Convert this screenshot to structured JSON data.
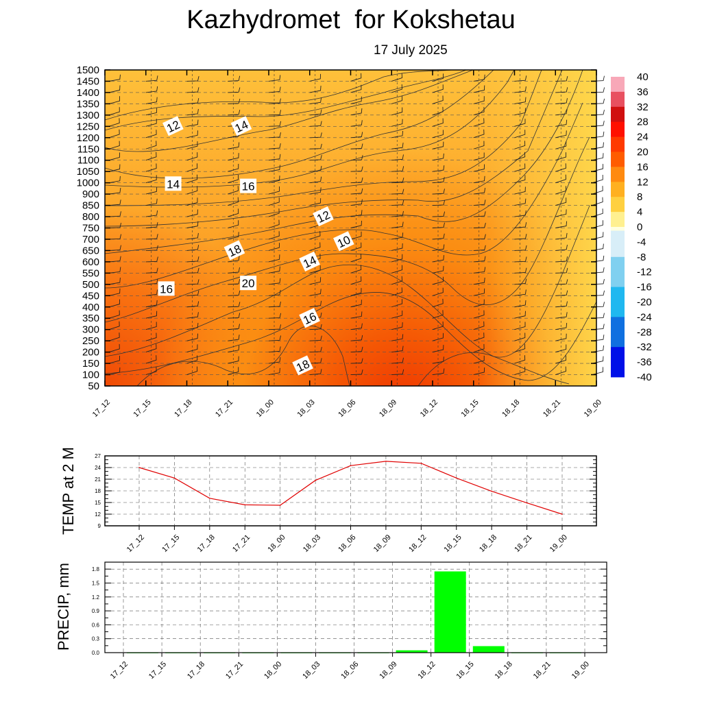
{
  "title": "Kazhydromet  for Kokshetau",
  "subtitle": "17 July 2025",
  "colors": {
    "contour_line": "#333333",
    "temp_line": "#e00000",
    "precip_bar": "#00ff00"
  },
  "chart_data": [
    {
      "type": "heatmap",
      "title": "",
      "xlabel": "",
      "ylabel": "",
      "x_ticks": [
        "17_12",
        "17_15",
        "17_18",
        "17_21",
        "18_00",
        "18_03",
        "18_06",
        "18_09",
        "18_12",
        "18_15",
        "18_18",
        "18_21",
        "19_00"
      ],
      "y_ticks": [
        50,
        100,
        150,
        200,
        250,
        300,
        350,
        400,
        450,
        500,
        550,
        600,
        650,
        700,
        750,
        800,
        850,
        900,
        1000,
        1050,
        1100,
        1150,
        1200,
        1250,
        1300,
        1350,
        1400,
        1450,
        1500
      ],
      "ylim": [
        50,
        1500
      ],
      "colorbar": {
        "ticks": [
          40,
          36,
          32,
          28,
          24,
          20,
          16,
          12,
          8,
          4,
          0,
          -4,
          -8,
          -12,
          -16,
          -20,
          -24,
          -28,
          -32,
          -36,
          -40
        ],
        "range": [
          -40,
          40
        ]
      },
      "contour_labels": [
        {
          "text": "12",
          "x": "17_22",
          "y": 1250
        },
        {
          "text": "14",
          "x": "18_08",
          "y": 1250
        },
        {
          "text": "14",
          "x": "17_22",
          "y": 990
        },
        {
          "text": "16",
          "x": "18_09",
          "y": 970
        },
        {
          "text": "12",
          "x": "18_20",
          "y": 800
        },
        {
          "text": "10",
          "x": "18_23",
          "y": 690
        },
        {
          "text": "18",
          "x": "18_07",
          "y": 650
        },
        {
          "text": "14",
          "x": "18_18",
          "y": 600
        },
        {
          "text": "16",
          "x": "17_21",
          "y": 480
        },
        {
          "text": "20",
          "x": "18_09",
          "y": 505
        },
        {
          "text": "16",
          "x": "18_18",
          "y": 350
        },
        {
          "text": "18",
          "x": "18_17",
          "y": 140
        }
      ],
      "grid": true
    },
    {
      "type": "line",
      "title": "",
      "xlabel": "",
      "ylabel": "TEMP at 2 M",
      "categories": [
        "17_12",
        "17_15",
        "17_18",
        "17_21",
        "18_00",
        "18_03",
        "18_06",
        "18_09",
        "18_12",
        "18_15",
        "18_18",
        "18_21",
        "19_00"
      ],
      "values": [
        24.0,
        21.3,
        16.1,
        14.4,
        14.3,
        20.7,
        24.5,
        25.6,
        25.1,
        21.3,
        17.9,
        14.9,
        12.0
      ],
      "y_ticks": [
        9,
        12,
        15,
        18,
        21,
        24,
        27
      ],
      "ylim": [
        9,
        27
      ],
      "grid": true
    },
    {
      "type": "bar",
      "title": "",
      "xlabel": "",
      "ylabel": "PRECIP, mm",
      "categories": [
        "17_12",
        "17_15",
        "17_18",
        "17_21",
        "18_00",
        "18_03",
        "18_06",
        "18_09",
        "18_12",
        "18_15",
        "18_18",
        "18_21",
        "19_00"
      ],
      "values": [
        0,
        0,
        0,
        0,
        0,
        0,
        0,
        0,
        0.05,
        1.75,
        0.14,
        0,
        0
      ],
      "y_ticks": [
        "0.0",
        "0.3",
        "0.6",
        "0.9",
        "1.2",
        "1.5",
        "1.8"
      ],
      "ylim": [
        0,
        1.95
      ],
      "grid": true
    }
  ]
}
